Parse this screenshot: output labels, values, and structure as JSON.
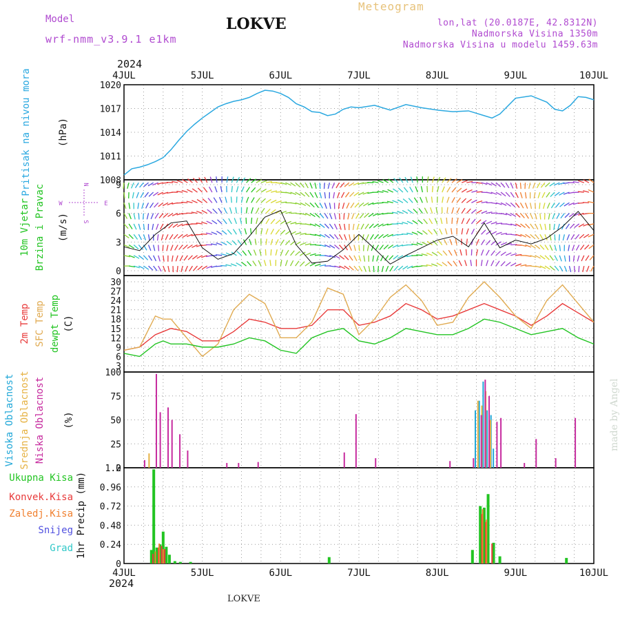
{
  "header": {
    "model_label": "Model",
    "model_version": "wrf-nmm_v3.9.1 e1km",
    "title": "LOKVE",
    "meteogram_label": "Meteogram",
    "lonlat": "lon,lat (20.0187E, 42.8312N)",
    "altitude": "Nadmorska Visina 1350m",
    "model_altitude": "Nadmorska Visina u modelu 1459.63m"
  },
  "time_axis": {
    "year": "2024",
    "labels": [
      "4JUL",
      "5JUL",
      "6JUL",
      "7JUL",
      "8JUL",
      "9JUL",
      "10JUL"
    ]
  },
  "footer": {
    "location": "LOKVE",
    "credit": "made by Angel"
  },
  "colors": {
    "pressure": "#2aa8e0",
    "temp2m": "#e83a3a",
    "sfc": "#e0aa50",
    "dew": "#22c422",
    "high_cloud": "#22a8d8",
    "mid_cloud": "#e6b244",
    "low_cloud": "#c62a9e",
    "total_precip": "#22c422",
    "conv_precip": "#e83a3a",
    "frz_precip": "#f08030",
    "snow": "#5050e0",
    "graupel": "#30c8c8"
  },
  "chart_data": [
    {
      "type": "line",
      "panel": "pressure",
      "labels": [
        "Pritisak na nivou mora",
        "(hPa)"
      ],
      "ylim": [
        1008,
        1020
      ],
      "yticks": [
        1008,
        1011,
        1014,
        1017,
        1020
      ],
      "x": [
        0,
        0.1,
        0.2,
        0.3,
        0.4,
        0.5,
        0.6,
        0.7,
        0.8,
        0.9,
        1.0,
        1.1,
        1.2,
        1.3,
        1.4,
        1.5,
        1.6,
        1.7,
        1.8,
        1.9,
        2.0,
        2.1,
        2.2,
        2.3,
        2.4,
        2.5,
        2.6,
        2.7,
        2.8,
        2.9,
        3.0,
        3.2,
        3.4,
        3.6,
        3.8,
        4.0,
        4.2,
        4.4,
        4.6,
        4.7,
        4.8,
        5.0,
        5.2,
        5.4,
        5.5,
        5.6,
        5.7,
        5.8,
        5.9,
        6.0
      ],
      "series": [
        {
          "values": [
            1008.6,
            1009.4,
            1009.6,
            1009.9,
            1010.3,
            1010.8,
            1011.8,
            1013.0,
            1014.1,
            1015.0,
            1015.8,
            1016.5,
            1017.2,
            1017.6,
            1017.9,
            1018.1,
            1018.4,
            1018.9,
            1019.3,
            1019.2,
            1018.9,
            1018.4,
            1017.6,
            1017.2,
            1016.6,
            1016.5,
            1016.1,
            1016.3,
            1016.9,
            1017.2,
            1017.1,
            1017.4,
            1016.8,
            1017.5,
            1017.1,
            1016.8,
            1016.6,
            1016.7,
            1016.1,
            1015.8,
            1016.3,
            1018.3,
            1018.6,
            1017.8,
            1016.9,
            1016.7,
            1017.4,
            1018.5,
            1018.4,
            1018.1
          ]
        }
      ]
    },
    {
      "type": "line",
      "panel": "wind",
      "labels": [
        "10m Vjetar",
        "Brzina i Pravac",
        "(m/s)"
      ],
      "compass": {
        "n": "N",
        "s": "S",
        "e": "E",
        "w": "W"
      },
      "ylim": [
        -0.5,
        9.5
      ],
      "yticks": [
        0,
        3,
        6,
        9
      ],
      "x": [
        0,
        0.2,
        0.4,
        0.6,
        0.8,
        1.0,
        1.2,
        1.4,
        1.6,
        1.8,
        2.0,
        2.2,
        2.4,
        2.6,
        2.8,
        3.0,
        3.2,
        3.4,
        3.6,
        3.8,
        4.0,
        4.2,
        4.4,
        4.6,
        4.8,
        5.0,
        5.2,
        5.4,
        5.6,
        5.8,
        6.0
      ],
      "series": [
        {
          "values": [
            2.5,
            2.1,
            3.8,
            5.0,
            5.2,
            2.4,
            1.2,
            1.8,
            3.6,
            5.6,
            6.3,
            2.7,
            0.8,
            1.0,
            2.2,
            3.8,
            2.3,
            0.7,
            1.6,
            2.4,
            3.2,
            3.6,
            2.5,
            5.0,
            2.4,
            3.2,
            2.8,
            3.4,
            4.6,
            6.2,
            4.2
          ]
        }
      ]
    },
    {
      "type": "line",
      "panel": "temperature",
      "labels": [
        "2m Temp",
        "SFC Temp",
        "dewpt Temp",
        "(C)"
      ],
      "ylim": [
        1,
        32
      ],
      "yticks": [
        3,
        6,
        9,
        12,
        15,
        18,
        21,
        24,
        27,
        30
      ],
      "x": [
        0,
        0.2,
        0.4,
        0.5,
        0.6,
        0.8,
        1.0,
        1.2,
        1.4,
        1.6,
        1.8,
        2.0,
        2.2,
        2.4,
        2.6,
        2.8,
        3.0,
        3.2,
        3.4,
        3.6,
        3.8,
        4.0,
        4.2,
        4.4,
        4.6,
        4.8,
        5.0,
        5.2,
        5.4,
        5.6,
        5.8,
        6.0
      ],
      "series": [
        {
          "name": "2m Temp",
          "values": [
            8,
            9,
            13,
            14,
            15,
            14,
            11,
            11,
            14,
            18,
            17,
            15,
            15,
            16,
            21,
            21,
            16,
            17,
            19,
            23,
            21,
            18,
            19,
            21,
            23,
            21,
            19,
            16,
            19,
            23,
            20,
            17
          ]
        },
        {
          "name": "SFC Temp",
          "values": [
            8,
            9,
            19,
            18,
            18,
            12,
            6,
            10,
            21,
            26,
            23,
            12,
            12,
            17,
            28,
            26,
            13,
            18,
            25,
            29,
            24,
            16,
            17,
            25,
            30,
            25,
            19,
            15,
            24,
            29,
            23,
            17
          ]
        },
        {
          "name": "dewpt Temp",
          "values": [
            7,
            6,
            10,
            11,
            10,
            10,
            9,
            9,
            10,
            12,
            11,
            8,
            7,
            12,
            14,
            15,
            11,
            10,
            12,
            15,
            14,
            13,
            13,
            15,
            18,
            17,
            15,
            13,
            14,
            15,
            12,
            10
          ]
        }
      ]
    },
    {
      "type": "bar",
      "panel": "clouds",
      "labels": [
        "Visoka Oblacnost",
        "Srednja Oblacnost",
        "Niska Oblacnost",
        "(%)"
      ],
      "ylim": [
        0,
        100
      ],
      "yticks": [
        0,
        25,
        50,
        75,
        100
      ],
      "series": [
        {
          "name": "Visoka Oblacnost",
          "x": [
            4.5,
            4.55,
            4.6,
            4.65,
            4.7,
            4.73
          ],
          "values": [
            60,
            70,
            90,
            60,
            55,
            20
          ]
        },
        {
          "name": "Srednja Oblacnost",
          "x": [
            0.32,
            4.52,
            4.57,
            4.62,
            4.68
          ],
          "values": [
            15,
            70,
            65,
            80,
            50
          ]
        },
        {
          "name": "Niska Oblacnost",
          "x": [
            0.25,
            0.4,
            0.45,
            0.55,
            0.6,
            0.7,
            0.8,
            1.3,
            1.45,
            1.7,
            2.8,
            2.95,
            3.2,
            4.15,
            4.45,
            4.55,
            4.6,
            4.65,
            4.75,
            4.8,
            5.1,
            5.25,
            5.5,
            5.75
          ],
          "values": [
            8,
            98,
            58,
            63,
            50,
            35,
            18,
            5,
            5,
            6,
            16,
            56,
            10,
            7,
            10,
            55,
            92,
            75,
            48,
            52,
            5,
            30,
            10,
            52
          ]
        }
      ]
    },
    {
      "type": "bar",
      "panel": "precipitation",
      "labels": [
        "Ukupna Kisa",
        "Konvek.Kisa",
        "Zaledj.Kisa",
        "Snijeg",
        "Grad",
        "1hr Precip (mm)"
      ],
      "ylim": [
        0,
        1.2
      ],
      "yticks": [
        0,
        0.24,
        0.48,
        0.72,
        0.96,
        1.2
      ],
      "yticklabels": [
        "0",
        "0.24",
        "0.48",
        "0.72",
        "0.96",
        "1.2"
      ],
      "series": [
        {
          "name": "Ukupna Kisa",
          "x": [
            0.35,
            0.38,
            0.42,
            0.46,
            0.5,
            0.54,
            0.58,
            0.65,
            0.72,
            0.85,
            2.62,
            4.45,
            4.55,
            4.6,
            4.65,
            4.72,
            4.8,
            5.65
          ],
          "values": [
            0.17,
            1.18,
            0.2,
            0.24,
            0.4,
            0.21,
            0.11,
            0.03,
            0.02,
            0.02,
            0.08,
            0.17,
            0.72,
            0.7,
            0.87,
            0.26,
            0.09,
            0.07
          ]
        },
        {
          "name": "Konvek.Kisa",
          "x": [
            0.37,
            0.44,
            0.48,
            0.52,
            4.57,
            4.62,
            4.7
          ],
          "values": [
            0.12,
            0.2,
            0.22,
            0.18,
            0.62,
            0.52,
            0.25
          ]
        },
        {
          "name": "Zaledj.Kisa",
          "x": [
            0.4,
            0.45,
            0.5,
            4.58,
            4.63
          ],
          "values": [
            0.15,
            0.25,
            0.18,
            0.68,
            0.55
          ]
        },
        {
          "name": "Snijeg",
          "x": [],
          "values": []
        },
        {
          "name": "Grad",
          "x": [],
          "values": []
        }
      ]
    }
  ]
}
